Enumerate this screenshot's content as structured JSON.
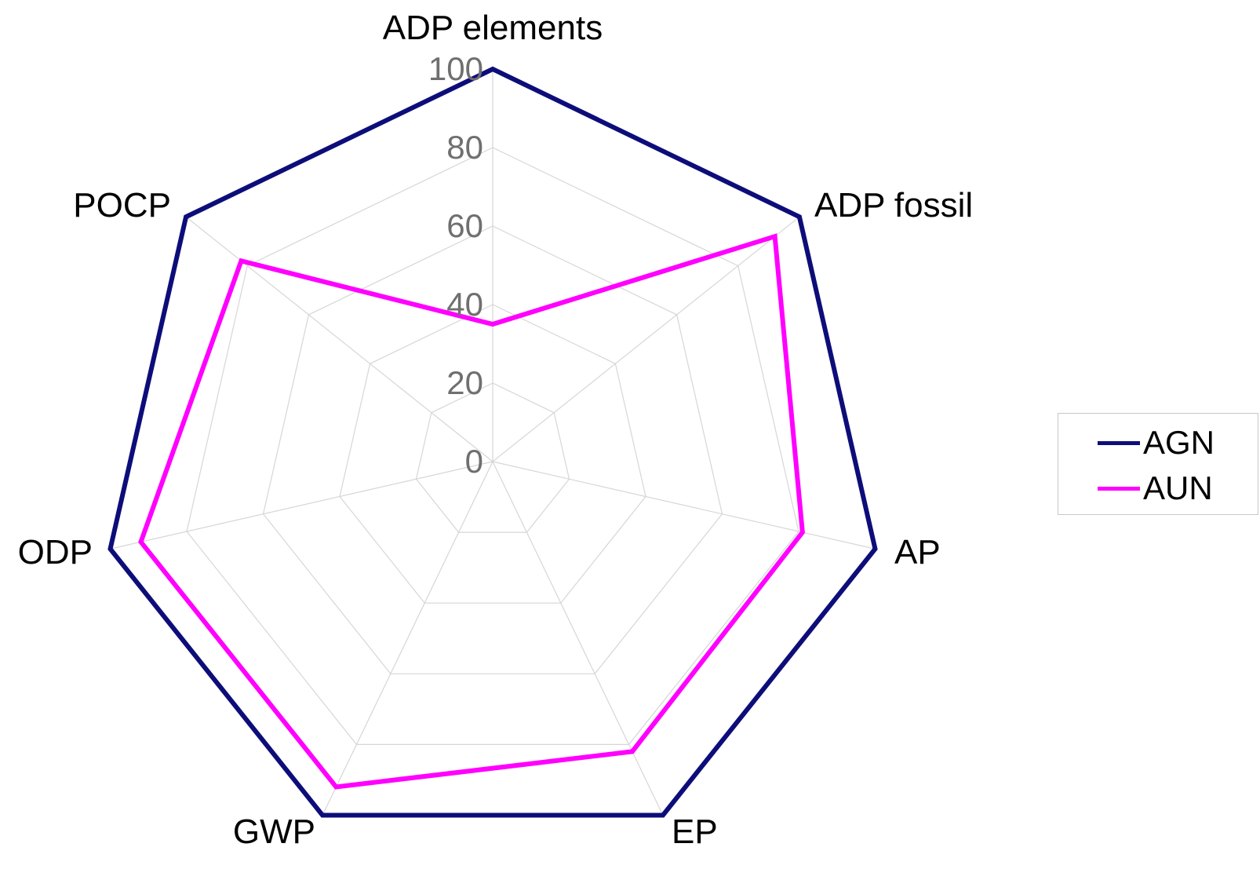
{
  "chart_data": {
    "type": "radar",
    "axes": [
      "ADP elements",
      "ADP fossil",
      "AP",
      "EP",
      "GWP",
      "ODP",
      "POCP"
    ],
    "rlim": [
      0,
      100
    ],
    "ticks": [
      0,
      20,
      40,
      60,
      80,
      100
    ],
    "tick_labels": [
      "0",
      "20",
      "40",
      "60",
      "80",
      "100"
    ],
    "series": [
      {
        "name": "AGN",
        "color": "#0d0d7a",
        "values": [
          100,
          100,
          100,
          100,
          100,
          100,
          100
        ]
      },
      {
        "name": "AUN",
        "color": "#ff00ff",
        "values": [
          35,
          92,
          81,
          82,
          92,
          92,
          82
        ]
      }
    ],
    "grid": true,
    "legend": "right"
  }
}
